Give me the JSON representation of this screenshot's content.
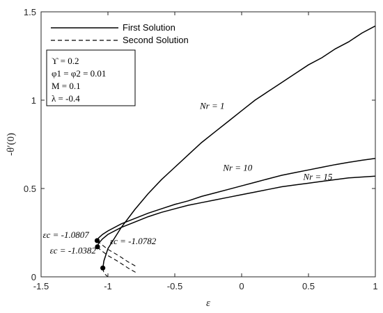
{
  "chart_data": {
    "type": "line",
    "title": "",
    "xlabel": "ε",
    "ylabel": "-θ′(0)",
    "xlim": [
      -1.5,
      1
    ],
    "ylim": [
      0,
      1.5
    ],
    "xticks": [
      -1.5,
      -1,
      -0.5,
      0,
      0.5,
      1
    ],
    "xtick_labels": [
      "-1.5",
      "-1",
      "-0.5",
      "0",
      "0.5",
      "1"
    ],
    "yticks": [
      0,
      0.5,
      1,
      1.5
    ],
    "ytick_labels": [
      "0",
      "0.5",
      "1",
      "1.5"
    ],
    "grid": false,
    "legend_position": "top-left",
    "legend": [
      {
        "label": "First Solution",
        "style": "solid"
      },
      {
        "label": "Second Solution",
        "style": "dashed"
      }
    ],
    "parameters": [
      "ϒ = 0.2",
      "φ1 = φ2 = 0.01",
      "M = 0.1",
      "λ = -0.4"
    ],
    "series": [
      {
        "label": "Nr = 1",
        "style": "solid",
        "x": [
          -1.0382,
          -1.03,
          -1.0,
          -0.95,
          -0.9,
          -0.8,
          -0.7,
          -0.6,
          -0.5,
          -0.4,
          -0.3,
          -0.2,
          -0.1,
          0.0,
          0.1,
          0.2,
          0.3,
          0.4,
          0.5,
          0.6,
          0.7,
          0.8,
          0.9,
          1.0
        ],
        "y": [
          0.05,
          0.09,
          0.16,
          0.22,
          0.28,
          0.38,
          0.47,
          0.55,
          0.62,
          0.69,
          0.76,
          0.82,
          0.88,
          0.94,
          1.0,
          1.05,
          1.1,
          1.15,
          1.2,
          1.24,
          1.29,
          1.33,
          1.38,
          1.42
        ]
      },
      {
        "label": "Nr = 1",
        "style": "dashed",
        "x": [
          -1.0382,
          -1.03,
          -1.0
        ],
        "y": [
          0.05,
          0.02,
          0.0
        ]
      },
      {
        "label": "Nr = 10",
        "style": "solid",
        "x": [
          -1.0807,
          -1.07,
          -1.04,
          -1.0,
          -0.9,
          -0.8,
          -0.7,
          -0.6,
          -0.5,
          -0.4,
          -0.3,
          -0.2,
          -0.1,
          0.0,
          0.1,
          0.2,
          0.3,
          0.4,
          0.5,
          0.6,
          0.7,
          0.8,
          0.9,
          1.0
        ],
        "y": [
          0.205,
          0.22,
          0.24,
          0.26,
          0.3,
          0.33,
          0.36,
          0.385,
          0.41,
          0.43,
          0.455,
          0.475,
          0.495,
          0.515,
          0.535,
          0.555,
          0.575,
          0.59,
          0.605,
          0.62,
          0.635,
          0.648,
          0.66,
          0.67
        ]
      },
      {
        "label": "Nr = 10",
        "style": "dashed",
        "x": [
          -1.0807,
          -1.06,
          -1.0,
          -0.92,
          -0.85,
          -0.78
        ],
        "y": [
          0.205,
          0.19,
          0.155,
          0.12,
          0.085,
          0.055
        ]
      },
      {
        "label": "Nr = 15",
        "style": "solid",
        "x": [
          -1.0782,
          -1.07,
          -1.04,
          -1.0,
          -0.9,
          -0.8,
          -0.7,
          -0.6,
          -0.5,
          -0.4,
          -0.3,
          -0.2,
          -0.1,
          0.0,
          0.1,
          0.2,
          0.3,
          0.4,
          0.5,
          0.6,
          0.7,
          0.8,
          0.9,
          1.0
        ],
        "y": [
          0.17,
          0.19,
          0.215,
          0.24,
          0.28,
          0.31,
          0.34,
          0.365,
          0.385,
          0.405,
          0.42,
          0.435,
          0.45,
          0.465,
          0.48,
          0.495,
          0.51,
          0.52,
          0.53,
          0.54,
          0.55,
          0.56,
          0.565,
          0.57
        ]
      },
      {
        "label": "Nr = 15",
        "style": "dashed",
        "x": [
          -1.0782,
          -1.06,
          -1.0,
          -0.92,
          -0.85,
          -0.78
        ],
        "y": [
          0.17,
          0.155,
          0.12,
          0.085,
          0.05,
          0.02
        ]
      }
    ],
    "curve_labels": [
      {
        "text": "Nr = 1",
        "x": -0.22,
        "y": 0.95
      },
      {
        "text": "Nr = 10",
        "x": -0.03,
        "y": 0.6
      },
      {
        "text": "Nr = 15",
        "x": 0.57,
        "y": 0.55
      }
    ],
    "critical_points": [
      {
        "label": "εc = -1.0807",
        "x": -1.0807,
        "y": 0.205
      },
      {
        "label": "εc = -1.0782",
        "x": -1.0782,
        "y": 0.17
      },
      {
        "label": "εc = -1.0382",
        "x": -1.0382,
        "y": 0.05
      }
    ]
  }
}
